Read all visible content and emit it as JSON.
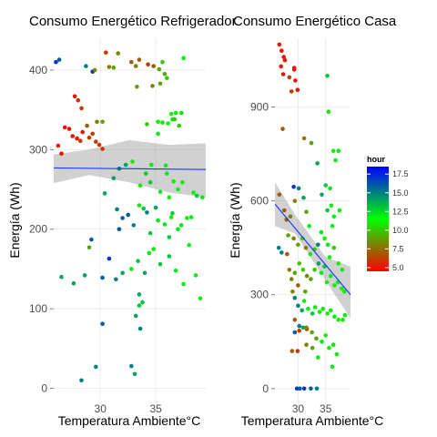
{
  "chart_data": [
    {
      "type": "scatter",
      "title": "Consumo Energético Refrigerador",
      "xlabel": "Temperatura Ambiente°C",
      "ylabel": "Energía (Wh)",
      "xlim": [
        25.8,
        39.5
      ],
      "ylim": [
        -20,
        440
      ],
      "xticks": [
        30,
        35
      ],
      "yticks": [
        0,
        100,
        200,
        300,
        400
      ],
      "grid": true,
      "trend": {
        "x": [
          25.8,
          39.5
        ],
        "y": [
          277,
          275
        ],
        "se_upper": [
          294,
          300,
          312,
          306,
          308
        ],
        "se_lower": [
          258,
          268,
          259,
          246,
          240
        ],
        "se_x": [
          25.8,
          29.0,
          32.6,
          36.2,
          39.5
        ]
      },
      "points": [
        [
          26.0,
          410,
          17
        ],
        [
          26.3,
          413,
          16
        ],
        [
          27.7,
          367,
          5
        ],
        [
          28.7,
          405,
          15
        ],
        [
          29.3,
          398,
          17
        ],
        [
          29.5,
          400,
          8
        ],
        [
          30.5,
          422,
          6
        ],
        [
          30.8,
          404,
          8
        ],
        [
          31.2,
          403,
          9
        ],
        [
          31.6,
          421,
          8
        ],
        [
          32.8,
          410,
          7
        ],
        [
          33.2,
          405,
          8
        ],
        [
          33.5,
          413,
          7
        ],
        [
          34.3,
          407,
          6
        ],
        [
          34.8,
          405,
          7
        ],
        [
          35.3,
          401,
          9
        ],
        [
          35.6,
          410,
          10
        ],
        [
          35.8,
          395,
          9
        ],
        [
          36.0,
          390,
          10
        ],
        [
          37.5,
          415,
          12
        ],
        [
          33.3,
          379,
          9
        ],
        [
          28.0,
          362,
          6
        ],
        [
          28.3,
          352,
          6
        ],
        [
          34.7,
          380,
          8
        ],
        [
          35.4,
          383,
          9
        ],
        [
          36.4,
          345,
          11
        ],
        [
          36.8,
          346,
          11
        ],
        [
          37.3,
          346,
          12
        ],
        [
          26.2,
          305,
          5
        ],
        [
          26.5,
          295,
          5
        ],
        [
          26.8,
          328,
          5
        ],
        [
          27.2,
          326,
          5
        ],
        [
          27.5,
          317,
          5
        ],
        [
          27.9,
          314,
          5
        ],
        [
          28.2,
          311,
          6
        ],
        [
          28.4,
          322,
          5
        ],
        [
          28.8,
          330,
          7
        ],
        [
          29.0,
          315,
          6
        ],
        [
          29.3,
          320,
          6
        ],
        [
          29.6,
          310,
          6
        ],
        [
          29.9,
          306,
          6
        ],
        [
          30.2,
          301,
          6
        ],
        [
          29.7,
          335,
          8
        ],
        [
          30.2,
          335,
          9
        ],
        [
          34.2,
          332,
          10
        ],
        [
          35.2,
          335,
          11
        ],
        [
          35.6,
          334,
          12
        ],
        [
          36.1,
          333,
          11
        ],
        [
          36.5,
          338,
          12
        ],
        [
          36.7,
          338,
          10
        ],
        [
          37.1,
          330,
          10
        ],
        [
          35.2,
          320,
          12
        ],
        [
          35.9,
          280,
          12
        ],
        [
          36.0,
          270,
          12
        ],
        [
          36.6,
          260,
          11
        ],
        [
          37.0,
          250,
          12
        ],
        [
          37.4,
          259,
          11
        ],
        [
          38.4,
          246,
          12
        ],
        [
          38.7,
          242,
          13
        ],
        [
          39.2,
          240,
          12
        ],
        [
          30.4,
          245,
          14
        ],
        [
          31.2,
          264,
          14
        ],
        [
          31.7,
          276,
          15
        ],
        [
          32.3,
          281,
          14
        ],
        [
          32.9,
          285,
          11
        ],
        [
          33.6,
          255,
          11
        ],
        [
          34.5,
          259,
          13
        ],
        [
          34.1,
          270,
          13
        ],
        [
          34.6,
          281,
          12
        ],
        [
          35.4,
          247,
          12
        ],
        [
          36.2,
          240,
          11
        ],
        [
          31.5,
          225,
          15
        ],
        [
          31.7,
          200,
          16
        ],
        [
          32.0,
          214,
          16
        ],
        [
          32.5,
          218,
          16
        ],
        [
          33.0,
          205,
          15
        ],
        [
          33.5,
          230,
          11
        ],
        [
          33.9,
          226,
          13
        ],
        [
          34.2,
          221,
          15
        ],
        [
          35.0,
          227,
          14
        ],
        [
          35.2,
          211,
          12
        ],
        [
          35.8,
          206,
          12
        ],
        [
          36.2,
          190,
          13
        ],
        [
          36.5,
          220,
          13
        ],
        [
          37.0,
          200,
          12
        ],
        [
          37.3,
          205,
          12
        ],
        [
          37.8,
          214,
          11
        ],
        [
          38.0,
          180,
          12
        ],
        [
          38.2,
          215,
          12
        ],
        [
          34.5,
          195,
          13
        ],
        [
          32.0,
          145,
          14
        ],
        [
          32.8,
          150,
          12
        ],
        [
          33.4,
          160,
          13
        ],
        [
          34.0,
          145,
          14
        ],
        [
          34.4,
          170,
          12
        ],
        [
          34.8,
          175,
          12
        ],
        [
          35.4,
          156,
          13
        ],
        [
          36.2,
          166,
          13
        ],
        [
          36.8,
          148,
          12
        ],
        [
          37.5,
          131,
          12
        ],
        [
          38.6,
          142,
          12
        ],
        [
          39.0,
          113,
          11
        ],
        [
          33.5,
          104,
          13
        ],
        [
          30.8,
          163,
          17
        ],
        [
          31.4,
          137,
          15
        ],
        [
          30.2,
          139,
          16
        ],
        [
          28.6,
          142,
          14
        ],
        [
          26.5,
          140,
          14
        ],
        [
          27.6,
          132,
          14
        ],
        [
          33.5,
          118,
          14
        ],
        [
          33.8,
          108,
          13
        ],
        [
          33.2,
          91,
          14
        ],
        [
          33.6,
          75,
          15
        ],
        [
          30.2,
          81,
          16
        ],
        [
          32.8,
          28,
          15
        ],
        [
          33.1,
          18,
          14
        ],
        [
          28.3,
          10,
          15
        ],
        [
          29.6,
          27,
          15
        ],
        [
          29.0,
          177,
          9
        ],
        [
          29.2,
          187,
          16
        ],
        [
          36.4,
          215,
          11
        ]
      ]
    },
    {
      "type": "scatter",
      "title": "Consumo Energético Casa",
      "xlabel": "Temperatura Ambiente°C",
      "ylabel": "Energía (Wh)",
      "xlim": [
        25.8,
        39.5
      ],
      "ylim": [
        -50,
        1120
      ],
      "xticks": [
        30,
        35
      ],
      "yticks": [
        0,
        300,
        600,
        900
      ],
      "grid": true,
      "legend": {
        "title": "hour",
        "position": "right",
        "ticks": [
          5.0,
          7.5,
          10.0,
          12.5,
          15.0,
          17.5
        ],
        "range": [
          4.5,
          18.5
        ],
        "colors": [
          "#ff0000",
          "#00ff00",
          "#0000ff"
        ]
      },
      "trend": {
        "x": [
          25.8,
          39.5
        ],
        "y": [
          590,
          300
        ],
        "se_upper": [
          660,
          555,
          420,
          390
        ],
        "se_lower": [
          520,
          495,
          345,
          225
        ],
        "se_x": [
          25.8,
          29.5,
          35.0,
          39.5
        ]
      },
      "points": [
        [
          26.6,
          1100,
          5
        ],
        [
          27.0,
          1080,
          5
        ],
        [
          27.4,
          1060,
          5
        ],
        [
          26.9,
          1030,
          5
        ],
        [
          27.6,
          1050,
          5
        ],
        [
          27.3,
          1005,
          5
        ],
        [
          28.4,
          995,
          6
        ],
        [
          29.5,
          985,
          5
        ],
        [
          29.9,
          955,
          5
        ],
        [
          28.8,
          950,
          6
        ],
        [
          29.3,
          1025,
          5
        ],
        [
          27.2,
          830,
          7
        ],
        [
          29.3,
          1020,
          5
        ],
        [
          31.1,
          800,
          8
        ],
        [
          32.4,
          785,
          9
        ],
        [
          35.3,
          1000,
          13
        ],
        [
          35.5,
          885,
          11
        ],
        [
          36.4,
          760,
          11
        ],
        [
          37.3,
          760,
          12
        ],
        [
          36.8,
          730,
          12
        ],
        [
          33.5,
          720,
          14
        ],
        [
          34.3,
          620,
          14
        ],
        [
          35.0,
          650,
          13
        ],
        [
          35.8,
          640,
          12
        ],
        [
          36.0,
          585,
          11
        ],
        [
          35.3,
          570,
          13
        ],
        [
          36.5,
          550,
          12
        ],
        [
          36.2,
          520,
          12
        ],
        [
          37.5,
          570,
          11
        ],
        [
          26.6,
          620,
          7
        ],
        [
          27.5,
          570,
          7
        ],
        [
          27.9,
          540,
          7
        ],
        [
          28.6,
          550,
          8
        ],
        [
          29.4,
          600,
          8
        ],
        [
          29.2,
          645,
          17
        ],
        [
          30.1,
          640,
          15
        ],
        [
          31.0,
          610,
          14
        ],
        [
          31.5,
          565,
          9
        ],
        [
          32.0,
          520,
          12
        ],
        [
          26.5,
          450,
          15
        ],
        [
          27.0,
          435,
          15
        ],
        [
          28.2,
          490,
          9
        ],
        [
          29.2,
          480,
          8
        ],
        [
          30.0,
          460,
          9
        ],
        [
          30.8,
          480,
          10
        ],
        [
          31.4,
          450,
          8
        ],
        [
          32.2,
          430,
          11
        ],
        [
          33.0,
          445,
          10
        ],
        [
          33.6,
          460,
          15
        ],
        [
          34.2,
          500,
          12
        ],
        [
          34.8,
          480,
          11
        ],
        [
          35.4,
          460,
          12
        ],
        [
          35.7,
          420,
          11
        ],
        [
          36.5,
          450,
          10
        ],
        [
          37.3,
          400,
          11
        ],
        [
          38.0,
          380,
          11
        ],
        [
          28.0,
          430,
          7
        ],
        [
          28.4,
          380,
          8
        ],
        [
          28.8,
          350,
          8
        ],
        [
          29.4,
          370,
          9
        ],
        [
          30.2,
          400,
          10
        ],
        [
          30.9,
          380,
          10
        ],
        [
          31.6,
          360,
          8
        ],
        [
          32.3,
          350,
          9
        ],
        [
          33.0,
          380,
          10
        ],
        [
          33.7,
          400,
          14
        ],
        [
          34.2,
          370,
          12
        ],
        [
          34.8,
          390,
          13
        ],
        [
          35.2,
          340,
          11
        ],
        [
          35.9,
          360,
          12
        ],
        [
          36.6,
          330,
          11
        ],
        [
          37.2,
          340,
          12
        ],
        [
          37.9,
          320,
          11
        ],
        [
          38.4,
          310,
          11
        ],
        [
          30.0,
          330,
          7
        ],
        [
          29.0,
          310,
          8
        ],
        [
          31.3,
          310,
          9
        ],
        [
          29.4,
          290,
          15
        ],
        [
          30.0,
          265,
          15
        ],
        [
          30.7,
          250,
          14
        ],
        [
          31.1,
          280,
          11
        ],
        [
          31.8,
          255,
          12
        ],
        [
          32.6,
          240,
          13
        ],
        [
          33.1,
          260,
          12
        ],
        [
          33.9,
          245,
          11
        ],
        [
          34.5,
          255,
          12
        ],
        [
          35.3,
          240,
          11
        ],
        [
          35.9,
          250,
          12
        ],
        [
          36.6,
          230,
          12
        ],
        [
          37.3,
          220,
          11
        ],
        [
          38.1,
          220,
          11
        ],
        [
          38.5,
          235,
          12
        ],
        [
          29.4,
          220,
          7
        ],
        [
          30.2,
          200,
          15
        ],
        [
          30.9,
          195,
          14
        ],
        [
          31.6,
          190,
          6
        ],
        [
          32.5,
          180,
          9
        ],
        [
          33.3,
          160,
          9
        ],
        [
          34.3,
          150,
          12
        ],
        [
          35.0,
          170,
          11
        ],
        [
          35.6,
          130,
          11
        ],
        [
          36.4,
          140,
          12
        ],
        [
          37.0,
          110,
          11
        ],
        [
          29.4,
          180,
          16
        ],
        [
          28.9,
          120,
          7
        ],
        [
          29.9,
          120,
          6
        ],
        [
          31.5,
          140,
          8
        ],
        [
          32.6,
          130,
          9
        ],
        [
          33.6,
          100,
          12
        ],
        [
          29.8,
          0,
          17
        ],
        [
          30.3,
          0,
          16
        ],
        [
          31.1,
          0,
          17
        ],
        [
          32.3,
          0,
          16
        ],
        [
          33.4,
          0,
          15
        ],
        [
          31.5,
          195,
          8
        ],
        [
          30.2,
          185,
          6
        ],
        [
          36.2,
          70,
          12
        ]
      ]
    }
  ]
}
